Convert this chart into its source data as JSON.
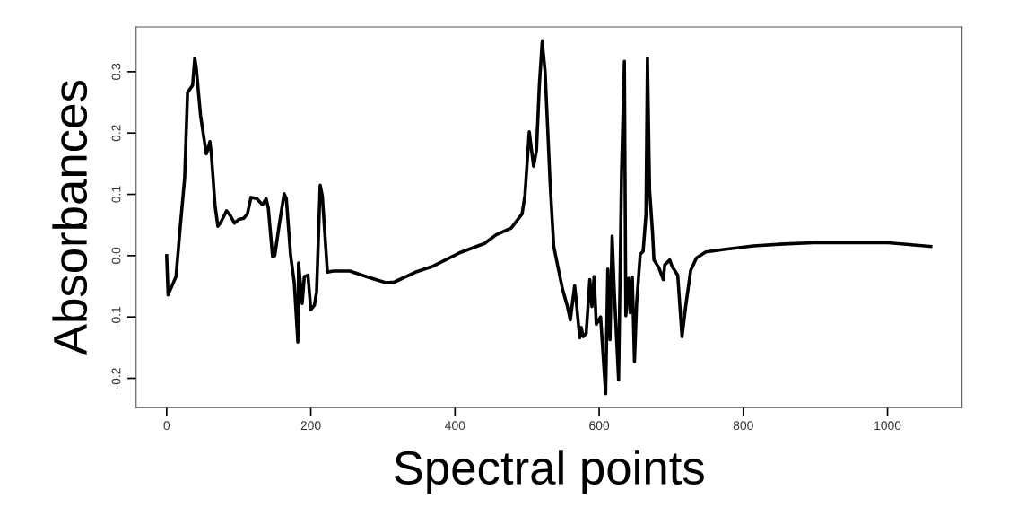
{
  "chart_data": {
    "type": "line",
    "xlabel": "Spectral points",
    "ylabel": "Absorbances",
    "xlim": [
      -42.4,
      1103.4
    ],
    "ylim": [
      -0.248,
      0.373
    ],
    "xticks": [
      0,
      200,
      400,
      600,
      800,
      1000
    ],
    "yticks": [
      {
        "value": -0.2,
        "label": "-0.2"
      },
      {
        "value": -0.1,
        "label": "-0.1"
      },
      {
        "value": 0.0,
        "label": "0.0"
      },
      {
        "value": 0.1,
        "label": "0.1"
      },
      {
        "value": 0.2,
        "label": "0.2"
      },
      {
        "value": 0.3,
        "label": "0.3"
      }
    ],
    "grid": false,
    "marker": "none",
    "line_style": "solid",
    "series": [
      {
        "color": "#000000",
        "x": [
          0,
          2,
          13,
          19,
          25,
          29,
          36,
          39,
          41,
          47,
          55,
          57,
          60,
          62,
          67,
          71,
          75,
          83,
          88,
          94,
          100,
          107,
          112,
          117,
          125,
          133,
          138,
          141,
          147,
          150,
          156,
          163,
          166,
          172,
          177,
          182,
          183,
          188,
          191,
          196,
          200,
          205,
          208,
          213,
          216,
          223,
          231,
          254,
          279,
          304,
          316,
          345,
          370,
          407,
          441,
          457,
          478,
          493,
          497,
          503,
          509,
          513,
          517,
          521,
          525,
          532,
          537,
          549,
          556,
          560,
          566,
          568,
          573,
          575,
          578,
          582,
          587,
          590,
          593,
          596,
          602,
          609,
          612,
          615,
          618,
          621,
          627,
          631,
          635,
          637,
          641,
          643,
          646,
          649,
          652,
          657,
          661,
          665,
          667,
          670,
          674,
          676,
          683,
          689,
          691,
          698,
          701,
          709,
          715,
          720,
          727,
          735,
          748,
          773,
          814,
          856,
          897,
          959,
          1001,
          1030,
          1060
        ],
        "values": [
          0.0,
          -0.064,
          -0.034,
          0.049,
          0.127,
          0.266,
          0.278,
          0.322,
          0.307,
          0.229,
          0.166,
          0.173,
          0.186,
          0.166,
          0.083,
          0.048,
          0.054,
          0.073,
          0.066,
          0.053,
          0.059,
          0.061,
          0.068,
          0.095,
          0.093,
          0.083,
          0.093,
          0.078,
          -0.002,
          0.0,
          0.049,
          0.101,
          0.093,
          0.0,
          -0.044,
          -0.141,
          -0.012,
          -0.078,
          -0.034,
          -0.032,
          -0.088,
          -0.081,
          -0.059,
          0.115,
          0.097,
          -0.027,
          -0.025,
          -0.025,
          -0.035,
          -0.044,
          -0.043,
          -0.027,
          -0.017,
          0.005,
          0.02,
          0.034,
          0.045,
          0.068,
          0.098,
          0.202,
          0.146,
          0.171,
          0.278,
          0.349,
          0.3,
          0.117,
          0.015,
          -0.054,
          -0.083,
          -0.105,
          -0.049,
          -0.071,
          -0.134,
          -0.117,
          -0.132,
          -0.127,
          -0.039,
          -0.083,
          -0.034,
          -0.112,
          -0.1,
          -0.225,
          -0.022,
          -0.137,
          0.032,
          -0.059,
          -0.203,
          0.132,
          0.317,
          -0.098,
          -0.037,
          -0.093,
          -0.035,
          -0.173,
          -0.078,
          0.002,
          0.007,
          0.068,
          0.322,
          0.107,
          0.039,
          -0.007,
          -0.02,
          -0.039,
          -0.015,
          -0.007,
          -0.017,
          -0.032,
          -0.132,
          -0.083,
          -0.024,
          -0.004,
          0.006,
          0.01,
          0.016,
          0.019,
          0.021,
          0.021,
          0.021,
          0.018,
          0.015
        ]
      }
    ]
  }
}
